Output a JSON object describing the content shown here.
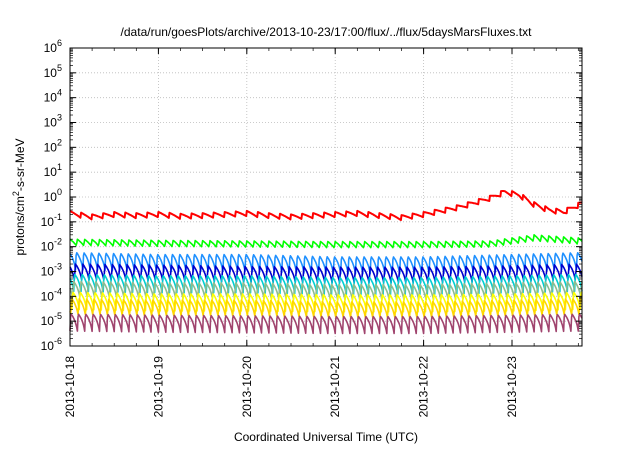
{
  "chart_data": {
    "type": "line",
    "title": "/data/run/goesPlots/archive/2013-10-23/17:00/flux/../flux/5daysMarsFluxes.txt",
    "xlabel": "Coordinated Universal Time (UTC)",
    "ylabel": {
      "prefix": "protons/cm",
      "exponent": "2",
      "suffix": "-s-sr-MeV"
    },
    "x_scale": "date",
    "y_scale": "log",
    "xlim": [
      "2013-10-18",
      "2013-10-23 19:00"
    ],
    "ylim": [
      1e-06,
      1000000.0
    ],
    "grid": true,
    "legend": "none",
    "x_ticks": [
      "2013-10-18",
      "2013-10-19",
      "2013-10-20",
      "2013-10-21",
      "2013-10-22",
      "2013-10-23"
    ],
    "y_ticks": [
      {
        "base": "10",
        "exp": "-6",
        "value": 1e-06
      },
      {
        "base": "10",
        "exp": "-5",
        "value": 1e-05
      },
      {
        "base": "10",
        "exp": "-4",
        "value": 0.0001
      },
      {
        "base": "10",
        "exp": "-3",
        "value": 0.001
      },
      {
        "base": "10",
        "exp": "-2",
        "value": 0.01
      },
      {
        "base": "10",
        "exp": "-1",
        "value": 0.1
      },
      {
        "base": "10",
        "exp": "0",
        "value": 1
      },
      {
        "base": "10",
        "exp": "1",
        "value": 10
      },
      {
        "base": "10",
        "exp": "2",
        "value": 100
      },
      {
        "base": "10",
        "exp": "3",
        "value": 1000
      },
      {
        "base": "10",
        "exp": "4",
        "value": 10000
      },
      {
        "base": "10",
        "exp": "5",
        "value": 100000
      },
      {
        "base": "10",
        "exp": "6",
        "value": 1000000
      }
    ],
    "series": [
      {
        "color": "#ff0000",
        "x": [
          "2013-10-18 00:00",
          "2013-10-18 06:00",
          "2013-10-18 12:00",
          "2013-10-18 18:00",
          "2013-10-19 00:00",
          "2013-10-19 06:00",
          "2013-10-19 12:00",
          "2013-10-19 18:00",
          "2013-10-20 00:00",
          "2013-10-20 06:00",
          "2013-10-20 12:00",
          "2013-10-20 18:00",
          "2013-10-21 00:00",
          "2013-10-21 06:00",
          "2013-10-21 12:00",
          "2013-10-21 18:00",
          "2013-10-22 00:00",
          "2013-10-22 06:00",
          "2013-10-22 10:00",
          "2013-10-22 14:00",
          "2013-10-22 18:00",
          "2013-10-22 22:00",
          "2013-10-23 02:00",
          "2013-10-23 06:00",
          "2013-10-23 10:00",
          "2013-10-23 14:00",
          "2013-10-23 19:00"
        ],
        "y": [
          0.22,
          0.16,
          0.2,
          0.18,
          0.2,
          0.17,
          0.18,
          0.2,
          0.22,
          0.18,
          0.16,
          0.18,
          0.2,
          0.22,
          0.18,
          0.15,
          0.2,
          0.3,
          0.4,
          0.6,
          0.9,
          1.6,
          1.2,
          0.5,
          0.3,
          0.25,
          0.55
        ]
      },
      {
        "color": "#00ff00",
        "x": [
          "2013-10-18 00:00",
          "2013-10-19 00:00",
          "2013-10-20 00:00",
          "2013-10-21 00:00",
          "2013-10-22 00:00",
          "2013-10-22 18:00",
          "2013-10-23 06:00",
          "2013-10-23 19:00"
        ],
        "y": [
          0.02,
          0.018,
          0.017,
          0.016,
          0.016,
          0.017,
          0.03,
          0.022
        ]
      },
      {
        "color": "#1e90ff",
        "x": [
          "2013-10-18 00:00",
          "2013-10-19 00:00",
          "2013-10-20 00:00",
          "2013-10-21 00:00",
          "2013-10-22 00:00",
          "2013-10-23 00:00",
          "2013-10-23 19:00"
        ],
        "y": [
          0.006,
          0.005,
          0.005,
          0.004,
          0.004,
          0.005,
          0.006
        ]
      },
      {
        "color": "#0000cd",
        "x": [
          "2013-10-18 00:00",
          "2013-10-19 00:00",
          "2013-10-20 00:00",
          "2013-10-21 00:00",
          "2013-10-22 00:00",
          "2013-10-23 00:00",
          "2013-10-23 19:00"
        ],
        "y": [
          0.002,
          0.0018,
          0.0016,
          0.0015,
          0.0015,
          0.0017,
          0.002
        ]
      },
      {
        "color": "#00ced1",
        "x": [
          "2013-10-18 00:00",
          "2013-10-19 00:00",
          "2013-10-20 00:00",
          "2013-10-21 00:00",
          "2013-10-22 00:00",
          "2013-10-23 00:00",
          "2013-10-23 19:00"
        ],
        "y": [
          0.0008,
          0.0007,
          0.0007,
          0.0006,
          0.0006,
          0.0007,
          0.0008
        ]
      },
      {
        "color": "#8fbc8f",
        "x": [
          "2013-10-18 00:00",
          "2013-10-19 00:00",
          "2013-10-20 00:00",
          "2013-10-21 00:00",
          "2013-10-22 00:00",
          "2013-10-23 00:00",
          "2013-10-23 19:00"
        ],
        "y": [
          0.0004,
          0.00035,
          0.00035,
          0.0003,
          0.0003,
          0.00035,
          0.0004
        ]
      },
      {
        "color": "#ffff00",
        "x": [
          "2013-10-18 00:00",
          "2013-10-19 00:00",
          "2013-10-20 00:00",
          "2013-10-21 00:00",
          "2013-10-22 00:00",
          "2013-10-23 00:00",
          "2013-10-23 19:00"
        ],
        "y": [
          0.00015,
          0.00013,
          0.00013,
          0.00012,
          0.00012,
          0.00013,
          0.00015
        ]
      },
      {
        "color": "#ffd700",
        "x": [
          "2013-10-18 00:00",
          "2013-10-19 00:00",
          "2013-10-20 00:00",
          "2013-10-21 00:00",
          "2013-10-22 00:00",
          "2013-10-23 00:00",
          "2013-10-23 19:00"
        ],
        "y": [
          8e-05,
          7e-05,
          7e-05,
          6e-05,
          6e-05,
          7e-05,
          8e-05
        ]
      },
      {
        "color": "#a0446e",
        "x": [
          "2013-10-18 00:00",
          "2013-10-19 00:00",
          "2013-10-20 00:00",
          "2013-10-21 00:00",
          "2013-10-22 00:00",
          "2013-10-23 00:00",
          "2013-10-23 19:00"
        ],
        "y": [
          2e-05,
          1.8e-05,
          1.7e-05,
          1.6e-05,
          1.6e-05,
          1.8e-05,
          2e-05
        ]
      }
    ],
    "notes_sawtooth": "Lower series oscillate in a regular sawtooth (~12 cycles per day) between roughly their peak value and ~1/5 of it."
  }
}
